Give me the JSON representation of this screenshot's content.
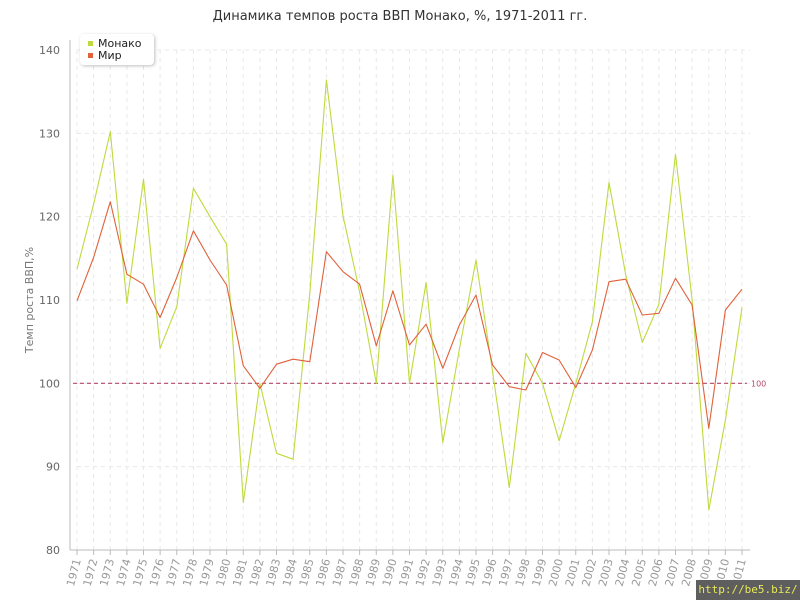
{
  "chart_data": {
    "type": "line",
    "title": "Динамика темпов роста ВВП Монако, %, 1971-2011 гг.",
    "ylabel": "Темп роста ВВП,%",
    "xlabel": "",
    "ylim": [
      80,
      140
    ],
    "yticks": [
      "80",
      "90",
      "100",
      "110",
      "120",
      "130",
      "140"
    ],
    "grid": true,
    "legend_position": "top-left",
    "categories": [
      "1971",
      "1972",
      "1973",
      "1974",
      "1975",
      "1976",
      "1977",
      "1978",
      "1979",
      "1980",
      "1981",
      "1982",
      "1983",
      "1984",
      "1985",
      "1986",
      "1987",
      "1988",
      "1989",
      "1990",
      "1991",
      "1992",
      "1993",
      "1994",
      "1995",
      "1996",
      "1997",
      "1998",
      "1999",
      "2000",
      "2001",
      "2002",
      "2003",
      "2004",
      "2005",
      "2006",
      "2007",
      "2008",
      "2009",
      "2010",
      "2011"
    ],
    "series": [
      {
        "name": "Монако",
        "color": "#bddb3d",
        "values": [
          113.7,
          121.5,
          130.2,
          109.6,
          124.5,
          104.2,
          109.2,
          123.4,
          120.0,
          116.7,
          85.7,
          100.0,
          91.6,
          90.9,
          110.8,
          136.4,
          120.1,
          111.0,
          100.0,
          125.0,
          100.0,
          112.1,
          92.9,
          104.1,
          114.8,
          101.4,
          87.5,
          103.6,
          100.0,
          93.1,
          100.0,
          107.4,
          124.1,
          113.1,
          104.9,
          109.5,
          127.5,
          110.0,
          84.8,
          95.6,
          109.1
        ]
      },
      {
        "name": "Мир",
        "color": "#e0613a",
        "values": [
          109.9,
          115.1,
          121.8,
          113.1,
          111.9,
          107.9,
          112.7,
          118.3,
          114.8,
          111.8,
          102.1,
          99.4,
          102.3,
          102.9,
          102.6,
          115.8,
          113.4,
          111.9,
          104.5,
          111.1,
          104.6,
          107.1,
          101.8,
          107.0,
          110.6,
          102.2,
          99.6,
          99.2,
          103.7,
          102.8,
          99.5,
          104.0,
          112.2,
          112.5,
          108.2,
          108.4,
          112.6,
          109.4,
          94.6,
          108.8,
          111.3
        ]
      }
    ],
    "reference_line": {
      "value": 100,
      "label": "100",
      "color": "#b04a6a"
    }
  },
  "watermark": "http://be5.biz/"
}
